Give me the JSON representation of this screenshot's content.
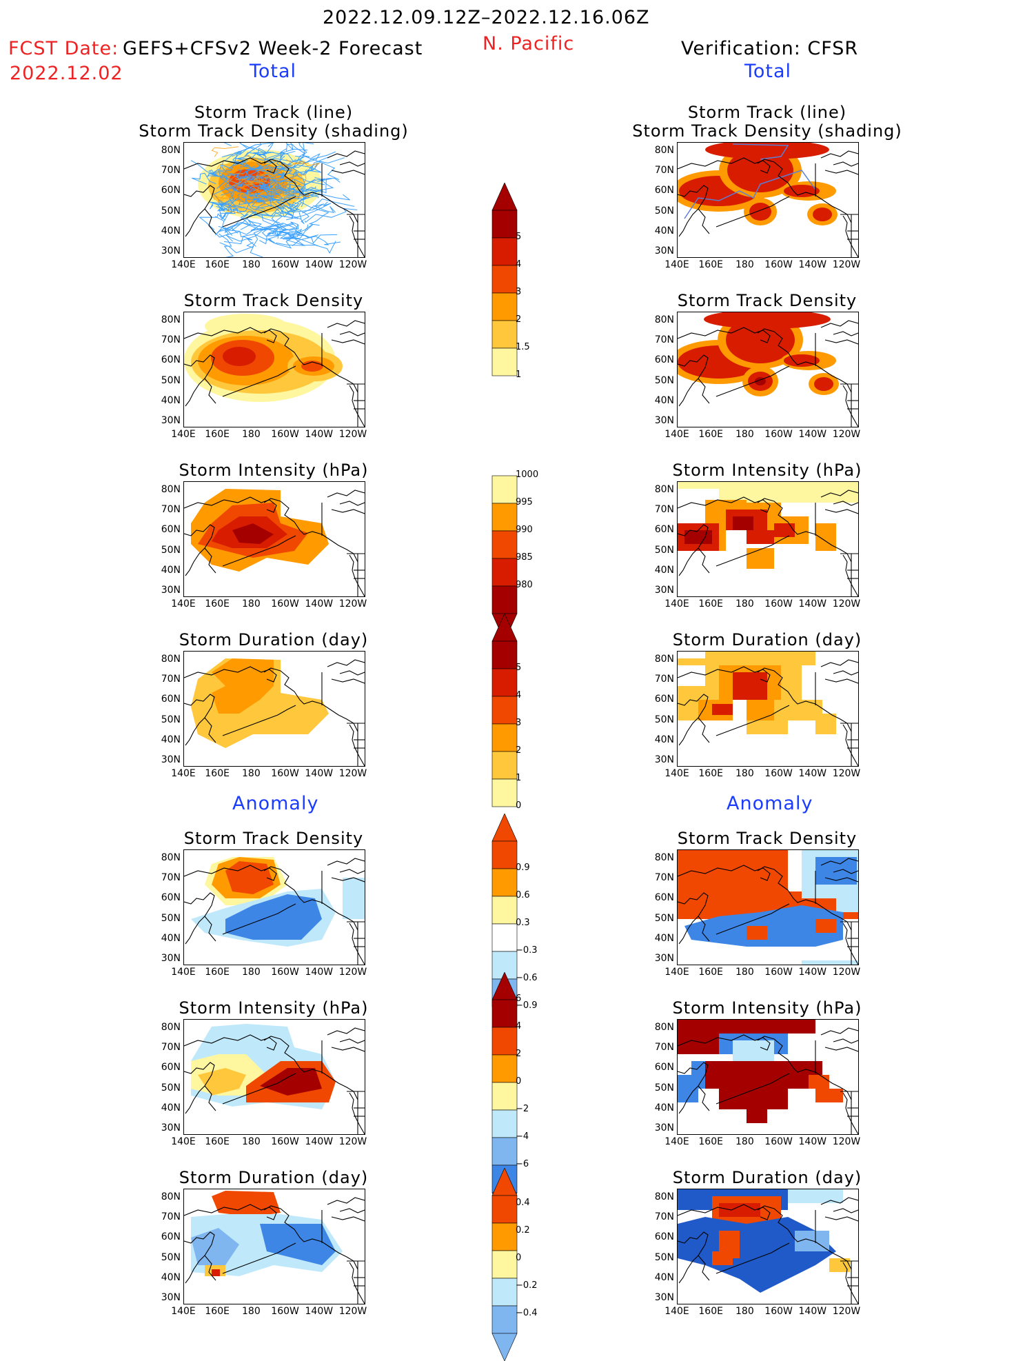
{
  "header": {
    "period": "2022.12.09.12Z–2022.12.16.06Z",
    "fcst_label": "FCST Date:",
    "fcst_date": "2022.12.02",
    "model": "GEFS+CFSv2 Week-2 Forecast",
    "region": "N. Pacific",
    "verification": "Verification: CFSR",
    "total_label": "Total",
    "anomaly_label": "Anomaly"
  },
  "colors": {
    "text_red": "#ee2222",
    "text_blue": "#1a3cff",
    "darkred": "#a50000",
    "red": "#d81c00",
    "orangered": "#f04800",
    "orange": "#ff9a00",
    "lightorange": "#ffc83c",
    "paleyellow": "#fff6a0",
    "lightblue": "#bfe9fb",
    "midblue": "#7fb6f0",
    "blue": "#3d86e6",
    "darkblue": "#1f5ac8",
    "track_blue": "#3aa0ff"
  },
  "axes": {
    "lat_labels": [
      "80N",
      "70N",
      "60N",
      "50N",
      "40N",
      "30N"
    ],
    "lon_labels": [
      "140E",
      "160E",
      "180",
      "160W",
      "140W",
      "120W"
    ]
  },
  "panel_titles": {
    "track_line": "Storm Track (line)",
    "track_density_shading": "Storm Track Density (shading)",
    "track_density": "Storm Track Density",
    "intensity": "Storm Intensity (hPa)",
    "duration": "Storm Duration (day)"
  },
  "colorbars": {
    "density": [
      "5",
      "4",
      "3",
      "2",
      "1.5",
      "1"
    ],
    "intensity": [
      "1000",
      "995",
      "990",
      "985",
      "980"
    ],
    "duration": [
      "5",
      "4",
      "3",
      "2",
      "1",
      "0"
    ],
    "density_anom": [
      "0.9",
      "0.6",
      "0.3",
      "−0.3",
      "−0.6",
      "−0.9"
    ],
    "intensity_anom": [
      "6",
      "4",
      "2",
      "0",
      "−2",
      "−4",
      "−6"
    ],
    "duration_anom": [
      "0.4",
      "0.2",
      "0",
      "−0.2",
      "−0.4"
    ]
  }
}
